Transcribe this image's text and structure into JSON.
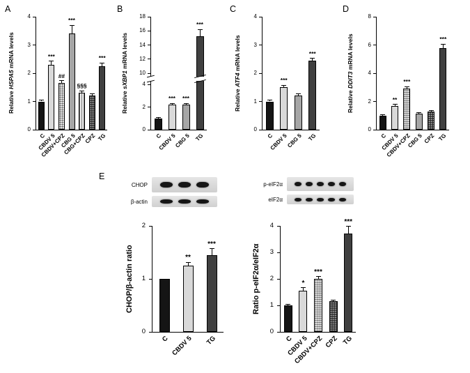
{
  "figure": {
    "background": "#ffffff"
  },
  "panel_letters": {
    "A": "A",
    "B": "B",
    "C": "C",
    "D": "D",
    "E": "E"
  },
  "colors": {
    "bar_black": "#151515",
    "bar_light_gray": "#d9d9d9",
    "bar_mid_gray": "#a6a6a6",
    "bar_dark_gray": "#404040"
  },
  "blots": {
    "left": {
      "rows": [
        {
          "label": "CHOP",
          "bands": 3,
          "band_h": 8
        },
        {
          "label": "β-actin",
          "bands": 3,
          "band_h": 6
        }
      ]
    },
    "right": {
      "rows": [
        {
          "label": "p-eIF2α",
          "bands": 5,
          "band_h": 6
        },
        {
          "label": "eIF2α",
          "bands": 5,
          "band_h": 5
        }
      ]
    }
  },
  "chart_data": [
    {
      "id": "A",
      "type": "bar",
      "ylabel": {
        "prefix": "Relative ",
        "gene": "HSPA5",
        "suffix": " mRNA levels"
      },
      "categories": [
        "C",
        "CBDV 5",
        "CBDV+CPZ",
        "CBG 5",
        "CBG+CPZ",
        "CPZ",
        "TG"
      ],
      "values": [
        1.0,
        2.3,
        1.65,
        3.4,
        1.3,
        1.2,
        2.25
      ],
      "errors": [
        0.05,
        0.12,
        0.08,
        0.3,
        0.08,
        0.06,
        0.12
      ],
      "annotations": [
        "",
        "***",
        "##",
        "***",
        "§§§",
        "",
        "***"
      ],
      "bar_styles": [
        "s-black",
        "s-light",
        "s-dotlight",
        "s-mid",
        "s-stripe",
        "s-dotdark",
        "s-dark"
      ],
      "ticks": [
        0,
        1,
        2,
        3,
        4
      ],
      "ylim": [
        0,
        4
      ],
      "grid": false,
      "legend": false,
      "break": null
    },
    {
      "id": "B",
      "type": "bar",
      "ylabel": {
        "prefix": "Relative ",
        "gene": "sXBP1",
        "suffix": " mRNA levels"
      },
      "categories": [
        "C",
        "CBDV 5",
        "CBG 5",
        "TG"
      ],
      "values": [
        1.0,
        2.2,
        2.2,
        15.2
      ],
      "errors": [
        0.05,
        0.12,
        0.12,
        1.0
      ],
      "annotations": [
        "",
        "***",
        "***",
        "***"
      ],
      "bar_styles": [
        "s-black",
        "s-light",
        "s-mid",
        "s-dark"
      ],
      "ticks": [
        0,
        2,
        4,
        10,
        12,
        14,
        16,
        18
      ],
      "ylim": [
        0,
        18
      ],
      "grid": false,
      "legend": false,
      "break": {
        "low": 4,
        "high": 10,
        "low_frac": 0.4,
        "high_frac": 0.5,
        "mark_frac": 0.45
      }
    },
    {
      "id": "C",
      "type": "bar",
      "ylabel": {
        "prefix": "Relative ",
        "gene": "ATF4",
        "suffix": " mRNA levels"
      },
      "categories": [
        "C",
        "CBDV 5",
        "CBG 5",
        "TG"
      ],
      "values": [
        1.0,
        1.5,
        1.2,
        2.45
      ],
      "errors": [
        0.04,
        0.08,
        0.06,
        0.07
      ],
      "annotations": [
        "",
        "***",
        "",
        "***"
      ],
      "bar_styles": [
        "s-black",
        "s-light",
        "s-mid",
        "s-dark"
      ],
      "ticks": [
        0,
        1,
        2,
        3,
        4
      ],
      "ylim": [
        0,
        4
      ],
      "grid": false,
      "legend": false,
      "break": null
    },
    {
      "id": "D",
      "type": "bar",
      "ylabel": {
        "prefix": "Relative ",
        "gene": "DDIT3",
        "suffix": " mRNA levels"
      },
      "categories": [
        "C",
        "CBDV 5",
        "CBDV+CPZ",
        "CBG 5",
        "CPZ",
        "TG"
      ],
      "values": [
        1.0,
        1.7,
        2.9,
        1.15,
        1.3,
        5.8
      ],
      "errors": [
        0.05,
        0.1,
        0.15,
        0.06,
        0.08,
        0.25
      ],
      "annotations": [
        "",
        "**",
        "***",
        "",
        "",
        "***"
      ],
      "bar_styles": [
        "s-black",
        "s-light",
        "s-dotlight",
        "s-mid",
        "s-dotdark",
        "s-dark"
      ],
      "ticks": [
        0,
        2,
        4,
        6,
        8
      ],
      "ylim": [
        0,
        8
      ],
      "grid": false,
      "legend": false,
      "break": null
    },
    {
      "id": "E-left",
      "type": "bar",
      "ylabel": {
        "prefix": "CHOP/β-actin ratio",
        "gene": "",
        "suffix": ""
      },
      "categories": [
        "C",
        "CBDV 5",
        "TG"
      ],
      "values": [
        1.0,
        1.25,
        1.45
      ],
      "errors": [
        0,
        0.06,
        0.12
      ],
      "annotations": [
        "",
        "**",
        "***"
      ],
      "bar_styles": [
        "s-black",
        "s-light",
        "s-dark"
      ],
      "ticks": [
        0,
        1,
        2
      ],
      "ylim": [
        0,
        2
      ],
      "grid": false,
      "legend": false,
      "break": null
    },
    {
      "id": "E-right",
      "type": "bar",
      "ylabel": {
        "prefix": "Ratio p-eIF2α/eIF2α",
        "gene": "",
        "suffix": ""
      },
      "categories": [
        "C",
        "CBDV 5",
        "CBDV+CPZ",
        "CPZ",
        "TG"
      ],
      "values": [
        1.0,
        1.55,
        2.0,
        1.15,
        3.7
      ],
      "errors": [
        0.05,
        0.12,
        0.08,
        0.06,
        0.28
      ],
      "annotations": [
        "",
        "*",
        "***",
        "",
        "***"
      ],
      "bar_styles": [
        "s-black",
        "s-light",
        "s-dotlight",
        "s-dotdark",
        "s-dark"
      ],
      "ticks": [
        0,
        1,
        2,
        3,
        4
      ],
      "ylim": [
        0,
        4
      ],
      "grid": false,
      "legend": false,
      "break": null
    }
  ]
}
